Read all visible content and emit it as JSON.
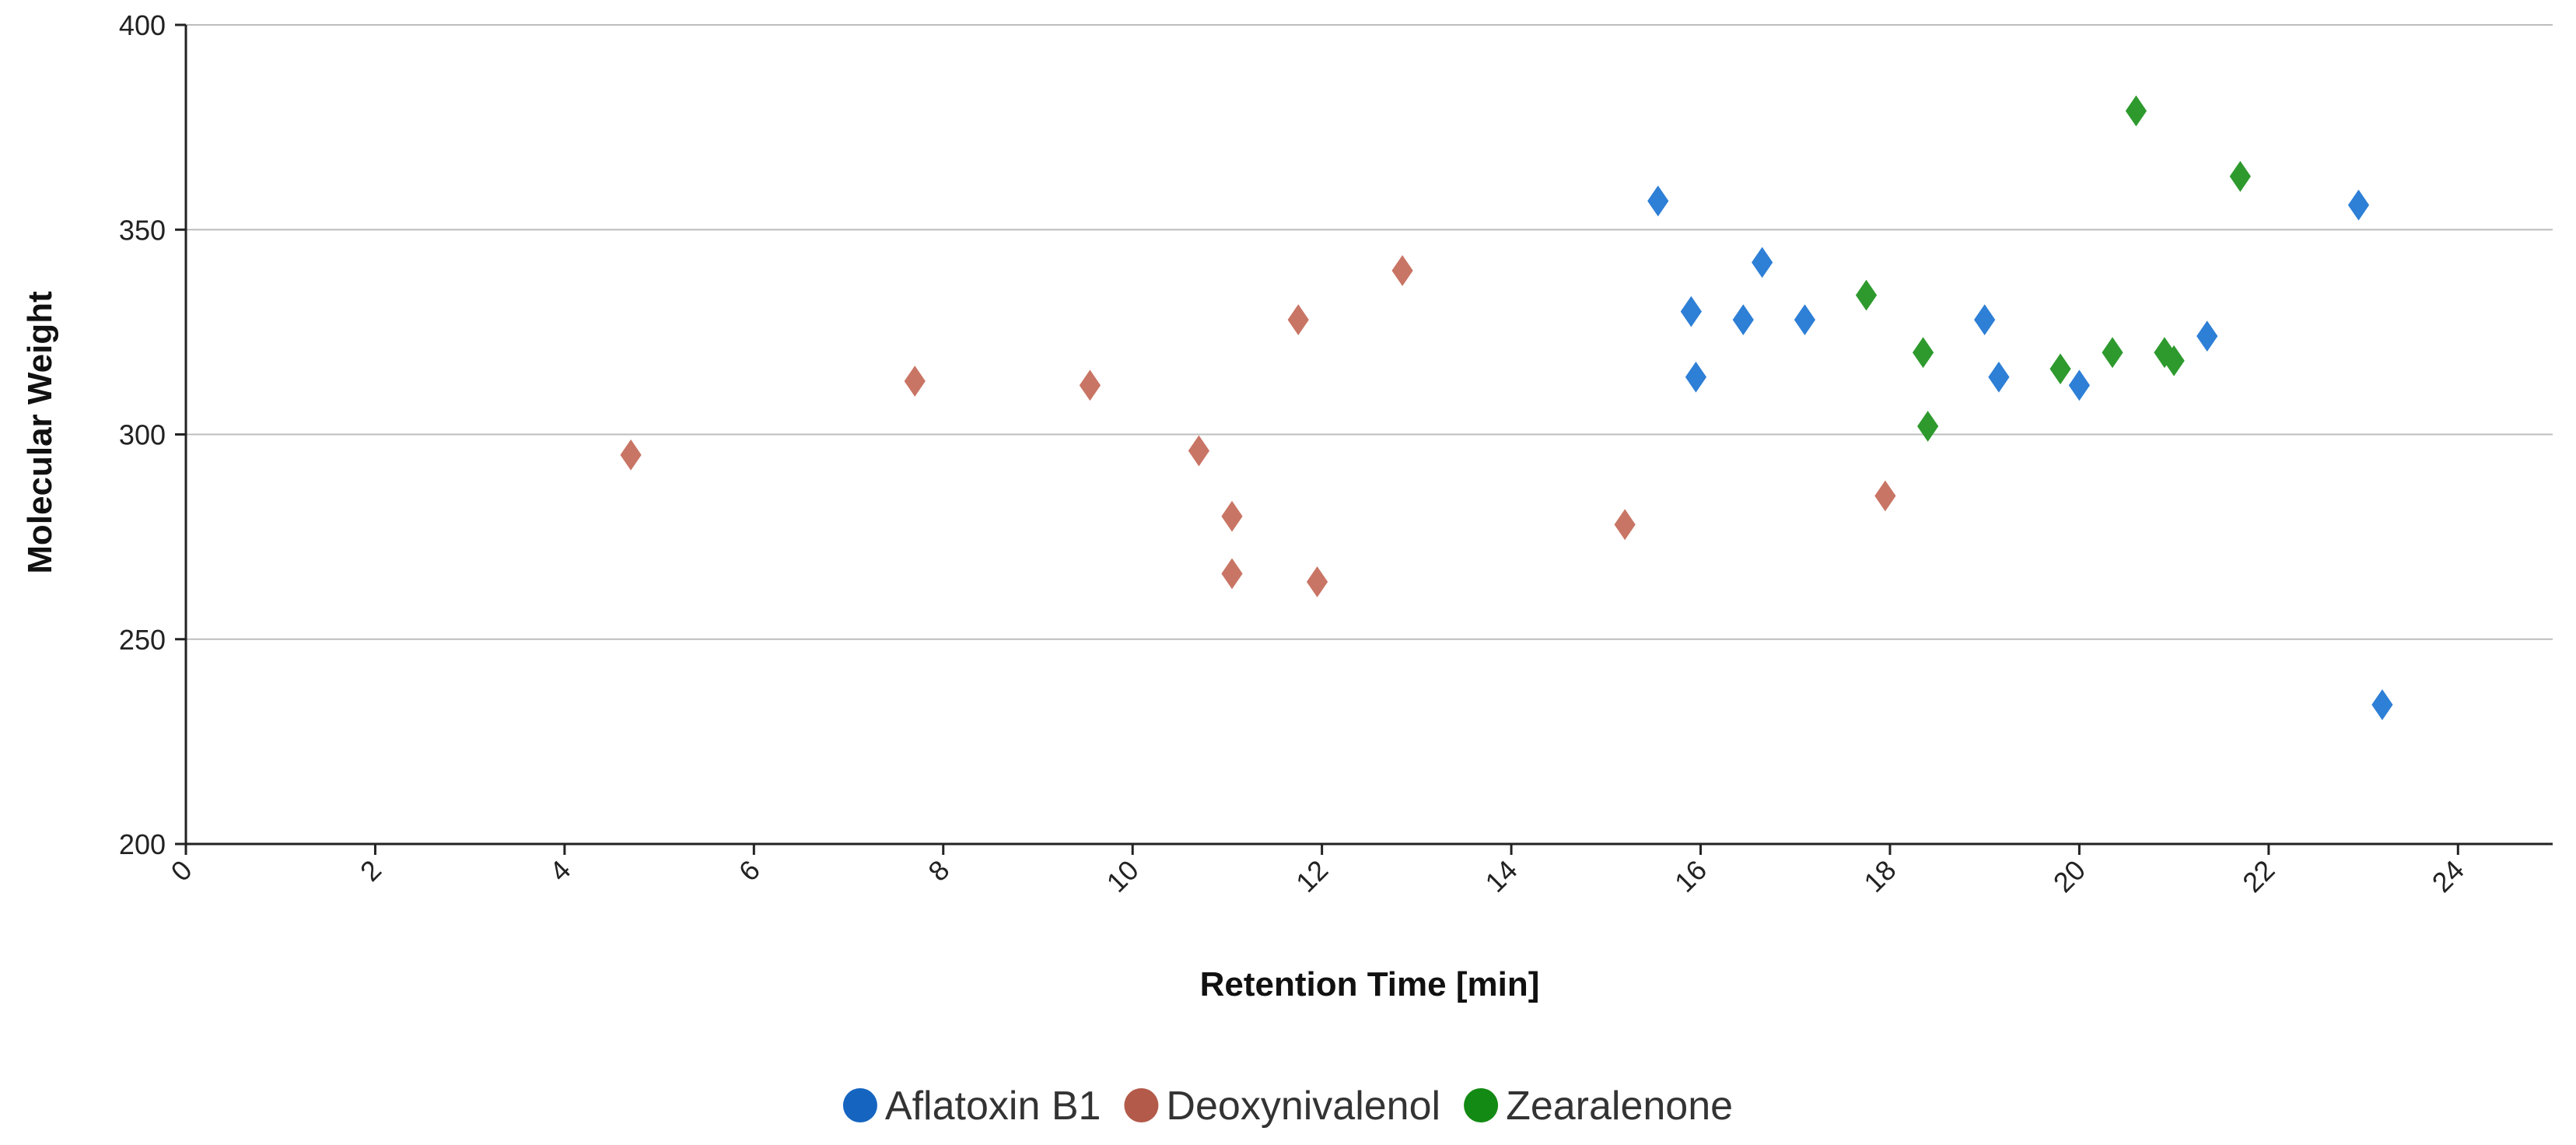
{
  "chart_data": {
    "type": "scatter",
    "title": "",
    "xlabel": "Retention Time [min]",
    "ylabel": "Molecular Weight",
    "xlim": [
      0,
      25
    ],
    "ylim": [
      200,
      400
    ],
    "xticks": [
      0,
      2,
      4,
      6,
      8,
      10,
      12,
      14,
      16,
      18,
      20,
      22,
      24
    ],
    "yticks": [
      200,
      250,
      300,
      350,
      400
    ],
    "grid": "horizontal",
    "legend_position": "bottom-center",
    "marker": "diamond",
    "series": [
      {
        "name": "Aflatoxin B1",
        "color": "#2e7fd6",
        "legend_color": "#1565c0",
        "points": [
          {
            "x": 15.55,
            "y": 357
          },
          {
            "x": 15.9,
            "y": 330
          },
          {
            "x": 15.95,
            "y": 314
          },
          {
            "x": 16.45,
            "y": 328
          },
          {
            "x": 16.65,
            "y": 342
          },
          {
            "x": 17.1,
            "y": 328
          },
          {
            "x": 19.0,
            "y": 328
          },
          {
            "x": 19.15,
            "y": 314
          },
          {
            "x": 20.0,
            "y": 312
          },
          {
            "x": 21.35,
            "y": 324
          },
          {
            "x": 22.95,
            "y": 356
          },
          {
            "x": 23.2,
            "y": 234
          }
        ]
      },
      {
        "name": "Deoxynivalenol",
        "color": "#c97565",
        "legend_color": "#b35a4a",
        "points": [
          {
            "x": 4.7,
            "y": 295
          },
          {
            "x": 7.7,
            "y": 313
          },
          {
            "x": 9.55,
            "y": 312
          },
          {
            "x": 10.7,
            "y": 296
          },
          {
            "x": 11.05,
            "y": 280
          },
          {
            "x": 11.05,
            "y": 266
          },
          {
            "x": 11.75,
            "y": 328
          },
          {
            "x": 11.95,
            "y": 264
          },
          {
            "x": 12.85,
            "y": 340
          },
          {
            "x": 15.2,
            "y": 278
          },
          {
            "x": 17.95,
            "y": 285
          }
        ]
      },
      {
        "name": "Zearalenone",
        "color": "#2e9a2e",
        "legend_color": "#138a13",
        "points": [
          {
            "x": 17.75,
            "y": 334
          },
          {
            "x": 18.35,
            "y": 320
          },
          {
            "x": 18.4,
            "y": 302
          },
          {
            "x": 19.8,
            "y": 316
          },
          {
            "x": 20.35,
            "y": 320
          },
          {
            "x": 20.6,
            "y": 379
          },
          {
            "x": 20.9,
            "y": 320
          },
          {
            "x": 21.0,
            "y": 318
          },
          {
            "x": 21.7,
            "y": 363
          }
        ]
      }
    ]
  }
}
